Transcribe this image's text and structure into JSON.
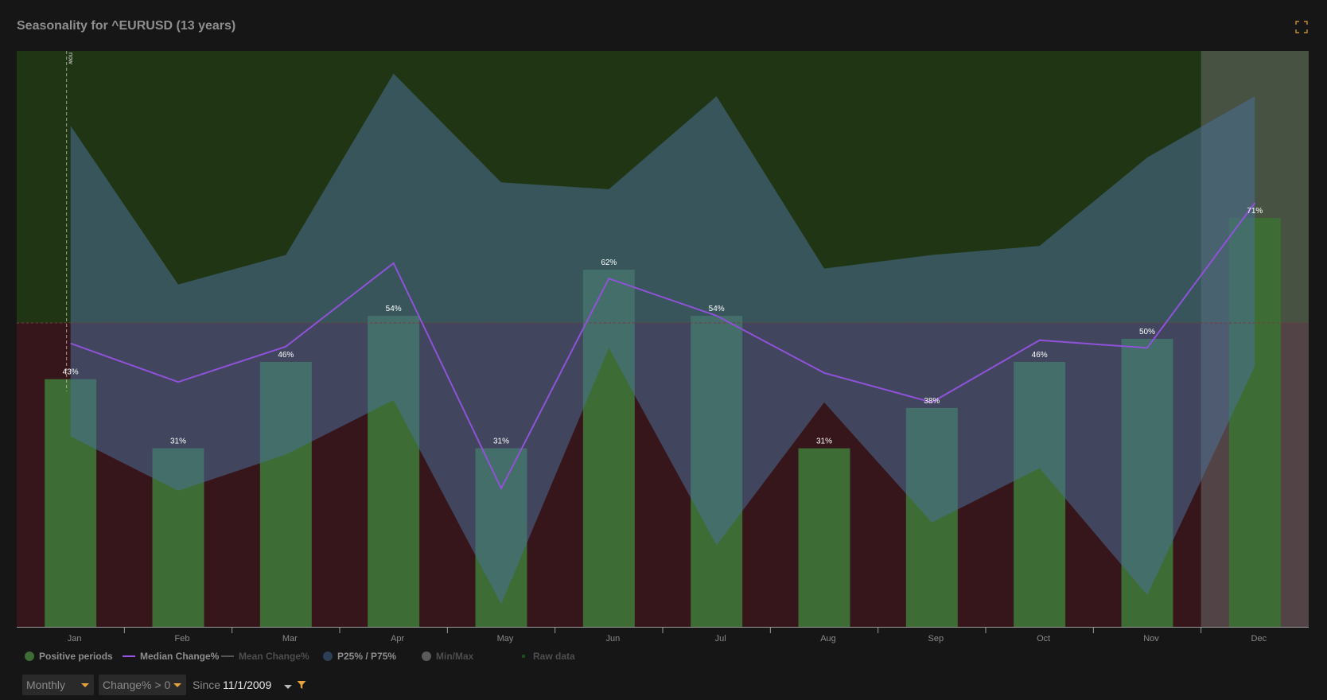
{
  "title": "Seasonality for ^EURUSD (13 years)",
  "colors": {
    "positive_bg": "#1f3514",
    "negative_bg": "#36161b",
    "bar": "#3d6d35",
    "iqr_band": "#4a6f96",
    "median_line": "#8f52d8",
    "highlight": "#6a6a6a",
    "accent": "#e6a23c",
    "axis": "#8a8a8a"
  },
  "now_label": "now",
  "expand_icon": "fullscreen-icon",
  "chart_data": {
    "type": "bar",
    "title": "Seasonality for ^EURUSD (13 years)",
    "categories": [
      "Jan",
      "Feb",
      "Mar",
      "Apr",
      "May",
      "Jun",
      "Jul",
      "Aug",
      "Sep",
      "Oct",
      "Nov",
      "Dec"
    ],
    "series": [
      {
        "name": "Positive periods",
        "unit": "%",
        "axis": "percent",
        "values": [
          43,
          31,
          46,
          54,
          31,
          62,
          54,
          31,
          38,
          46,
          50,
          71
        ],
        "labels": [
          "43%",
          "31%",
          "46%",
          "54%",
          "31%",
          "62%",
          "54%",
          "31%",
          "38%",
          "46%",
          "50%",
          "71%"
        ]
      },
      {
        "name": "Median Change%",
        "values": [
          -0.45,
          -1.3,
          -0.52,
          1.32,
          -3.65,
          0.98,
          0.16,
          -1.1,
          -1.75,
          -0.38,
          -0.55,
          2.65
        ]
      },
      {
        "name": "P25%",
        "values": [
          -2.5,
          -3.7,
          -2.9,
          -1.7,
          -6.2,
          -0.55,
          -4.9,
          -1.75,
          -4.4,
          -3.2,
          -6.0,
          -0.95
        ]
      },
      {
        "name": "P75%",
        "values": [
          4.35,
          0.85,
          1.5,
          5.5,
          3.1,
          2.95,
          5.0,
          1.2,
          1.5,
          1.7,
          3.65,
          5.0
        ]
      }
    ],
    "ylim_change": [
      -6.7,
      6.0
    ],
    "ylim_percent": [
      0,
      100
    ],
    "grid": false,
    "now_marker": "Jan",
    "highlighted_category": "Dec",
    "legend_position": "bottom-left"
  },
  "legend": [
    {
      "label": "Positive periods",
      "symbol": "dot",
      "color": "#3d6d35",
      "icon": "circle-icon",
      "active": true
    },
    {
      "label": "Median Change%",
      "symbol": "line",
      "color": "#9a55e8",
      "icon": "line-icon",
      "active": true
    },
    {
      "label": "Mean Change%",
      "symbol": "line",
      "color": "#555555",
      "icon": "line-icon",
      "active": false
    },
    {
      "label": "P25% / P75%",
      "symbol": "dot",
      "color": "#2c3f57",
      "icon": "circle-icon",
      "active": true
    },
    {
      "label": "Min/Max",
      "symbol": "dot",
      "color": "#5a5a5a",
      "icon": "circle-icon",
      "active": false
    },
    {
      "label": "Raw data",
      "symbol": "square",
      "color": "#1f4a1f",
      "icon": "square-icon",
      "active": false
    }
  ],
  "controls": {
    "period_select": "Monthly",
    "condition_select": "Change% > 0",
    "since_label": "Since",
    "since_value": "11/1/2009",
    "filter_icon": "filter-icon"
  }
}
